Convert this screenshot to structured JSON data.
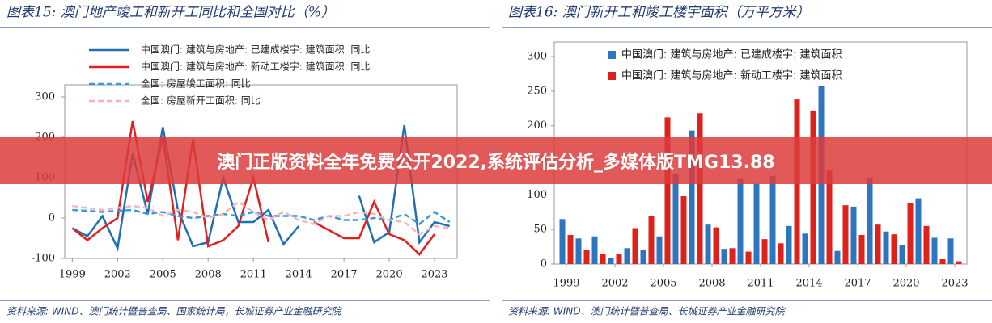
{
  "chart_data": [
    {
      "type": "line",
      "title": "图表15:  澳门地产竣工和新开工同比和全国对比（%）",
      "source": "资料来源: WIND、澳门统计暨普查局、国家统计局，长城证券产业金融研究院",
      "x": [
        1999,
        2000,
        2001,
        2002,
        2003,
        2004,
        2005,
        2006,
        2007,
        2008,
        2009,
        2010,
        2011,
        2012,
        2013,
        2014,
        2015,
        2016,
        2017,
        2018,
        2019,
        2020,
        2021,
        2022,
        2023,
        2024
      ],
      "xlim": [
        1998.5,
        2024.5
      ],
      "xticks": [
        1999,
        2002,
        2005,
        2008,
        2011,
        2014,
        2017,
        2020,
        2023
      ],
      "ylim": [
        -100,
        300
      ],
      "yticks": [
        -100,
        0,
        100,
        200,
        300
      ],
      "series": [
        {
          "name": "中国澳门: 建筑与房地产: 已建成楼宇: 建筑面积: 同比",
          "color": "#1f6fb5",
          "dash": false,
          "values": [
            -25,
            -45,
            5,
            -75,
            160,
            10,
            225,
            20,
            -70,
            -60,
            100,
            -10,
            -10,
            20,
            -65,
            -20,
            null,
            null,
            null,
            55,
            -60,
            -35,
            230,
            -60,
            -10,
            -20
          ]
        },
        {
          "name": "中国澳门: 建筑与房地产: 新动工楼宇: 建筑面积: 同比",
          "color": "#e02020",
          "dash": false,
          "values": [
            -25,
            -55,
            -25,
            0,
            240,
            40,
            200,
            -55,
            195,
            -70,
            -55,
            -20,
            100,
            -60,
            null,
            null,
            -10,
            -30,
            -50,
            -50,
            40,
            -40,
            -55,
            -90,
            -40,
            null
          ]
        },
        {
          "name": "全国: 房屋竣工面积: 同比",
          "color": "#3a9ad9",
          "dash": true,
          "values": [
            20,
            18,
            15,
            18,
            20,
            10,
            15,
            5,
            0,
            5,
            10,
            5,
            15,
            5,
            5,
            5,
            -5,
            5,
            -5,
            -5,
            0,
            -5,
            10,
            -15,
            15,
            -10
          ]
        },
        {
          "name": "全国: 房屋新开工面积: 同比",
          "color": "#f4b6b6",
          "dash": true,
          "values": [
            30,
            25,
            20,
            25,
            30,
            25,
            5,
            20,
            15,
            0,
            10,
            40,
            15,
            -5,
            15,
            -5,
            -15,
            5,
            5,
            15,
            10,
            -5,
            -10,
            -40,
            -20,
            -25
          ]
        }
      ]
    },
    {
      "type": "bar",
      "title": "图表16:  澳门新开工和竣工楼宇面积（万平方米）",
      "source": "资料来源: WIND、澳门统计暨普查局、长城证券产业金融研究院",
      "categories": [
        1999,
        2000,
        2001,
        2002,
        2003,
        2004,
        2005,
        2006,
        2007,
        2008,
        2009,
        2010,
        2011,
        2012,
        2013,
        2014,
        2015,
        2016,
        2017,
        2018,
        2019,
        2020,
        2021,
        2022,
        2023
      ],
      "xticks": [
        1999,
        2002,
        2005,
        2008,
        2011,
        2014,
        2017,
        2020,
        2023
      ],
      "ylim": [
        0,
        300
      ],
      "yticks": [
        0,
        50,
        100,
        150,
        200,
        250,
        300
      ],
      "series": [
        {
          "name": "中国澳门: 建筑与房地产: 已建成楼宇: 建筑面积",
          "color": "#2e75c0",
          "values": [
            65,
            37,
            40,
            9,
            23,
            21,
            40,
            130,
            193,
            57,
            22,
            123,
            116,
            127,
            55,
            44,
            258,
            19,
            83,
            125,
            47,
            28,
            95,
            38,
            37
          ]
        },
        {
          "name": "中国澳门: 建筑与房地产: 新动工楼宇: 建筑面积",
          "color": "#e0201b",
          "values": [
            42,
            20,
            15,
            15,
            52,
            70,
            212,
            98,
            218,
            53,
            23,
            18,
            36,
            30,
            238,
            222,
            135,
            85,
            42,
            57,
            43,
            88,
            55,
            7,
            4
          ]
        }
      ]
    }
  ],
  "banner": "澳门正版资料全年免费公开2022,系统评估分析_多媒体版TMG13.88"
}
